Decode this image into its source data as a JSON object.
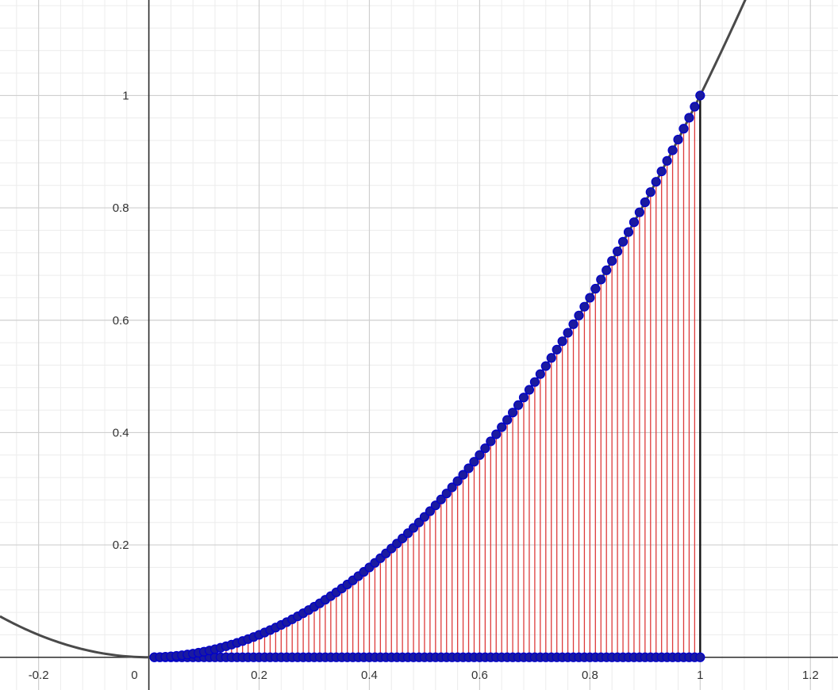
{
  "chart_data": {
    "type": "scatter",
    "title": "",
    "xlabel": "",
    "ylabel": "",
    "xlim": [
      -0.27,
      1.25
    ],
    "ylim": [
      -0.03,
      1.17
    ],
    "x_ticks": [
      {
        "value": -0.2,
        "label": "-0.2"
      },
      {
        "value": 0,
        "label": "0"
      },
      {
        "value": 0.2,
        "label": "0.2"
      },
      {
        "value": 0.4,
        "label": "0.4"
      },
      {
        "value": 0.6,
        "label": "0.6"
      },
      {
        "value": 0.8,
        "label": "0.8"
      },
      {
        "value": 1,
        "label": "1"
      },
      {
        "value": 1.2,
        "label": "1.2"
      }
    ],
    "y_ticks": [
      {
        "value": 0.2,
        "label": "0.2"
      },
      {
        "value": 0.4,
        "label": "0.4"
      },
      {
        "value": 0.6,
        "label": "0.6"
      },
      {
        "value": 0.8,
        "label": "0.8"
      },
      {
        "value": 1,
        "label": "1"
      }
    ],
    "grid": true,
    "major_grid_step": 0.2,
    "minor_grid_step": 0.04,
    "curve": {
      "function": "x^2",
      "x_range": [
        -0.27,
        1.25
      ]
    },
    "sample_points": {
      "x_start": 0.01,
      "x_end": 1,
      "count": 100,
      "function": "x^2"
    },
    "colors": {
      "curve": "#4a4a4a",
      "bars": "#dd3b3b",
      "points": "#1a1aa0",
      "point_outline": "#0000cc",
      "right_edge": "#111111"
    }
  }
}
